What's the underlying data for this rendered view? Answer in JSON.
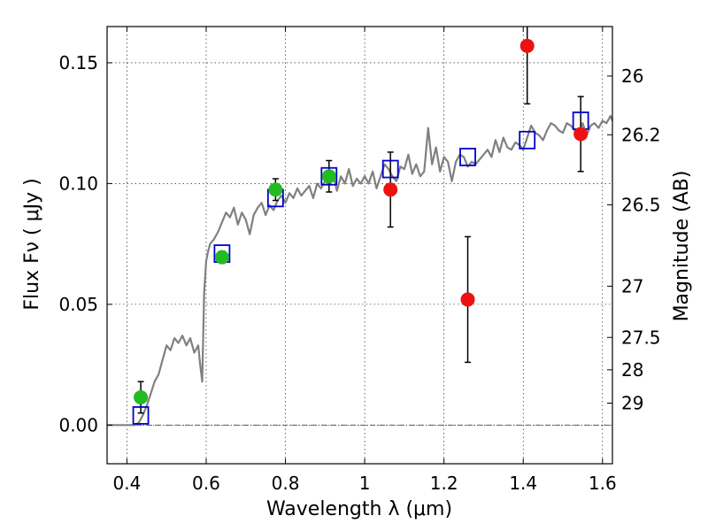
{
  "chart_data": {
    "type": "scatter",
    "xlabel": "Wavelength  λ (μm)",
    "ylabel": "Flux  Fν  ( μJy )",
    "ylabel_right": "Magnitude (AB)",
    "xlim": [
      0.35,
      1.625
    ],
    "ylim": [
      -0.016,
      0.165
    ],
    "grid": true,
    "x_ticks": [
      0.4,
      0.6,
      0.8,
      1.0,
      1.2,
      1.4,
      1.6
    ],
    "x_tick_labels": [
      "0.4",
      "0.6",
      "0.8",
      "1",
      "1.2",
      "1.4",
      "1.6"
    ],
    "y_ticks": [
      0.0,
      0.05,
      0.1,
      0.15
    ],
    "y_tick_labels": [
      "0.00",
      "0.05",
      "0.10",
      "0.15"
    ],
    "mag_ticks": [
      {
        "label": "26",
        "flux": 0.1445
      },
      {
        "label": "26.2",
        "flux": 0.1202
      },
      {
        "label": "26.5",
        "flux": 0.0912
      },
      {
        "label": "27",
        "flux": 0.0575
      },
      {
        "label": "27.5",
        "flux": 0.0363
      },
      {
        "label": "28",
        "flux": 0.0229
      },
      {
        "label": "29",
        "flux": 0.0091
      }
    ],
    "template_spectrum": {
      "color": "#808080",
      "x": [
        0.35,
        0.42,
        0.43,
        0.44,
        0.45,
        0.46,
        0.47,
        0.48,
        0.49,
        0.5,
        0.51,
        0.52,
        0.53,
        0.54,
        0.55,
        0.56,
        0.57,
        0.58,
        0.585,
        0.59,
        0.595,
        0.6,
        0.605,
        0.61,
        0.62,
        0.63,
        0.64,
        0.65,
        0.66,
        0.67,
        0.68,
        0.69,
        0.7,
        0.71,
        0.72,
        0.73,
        0.74,
        0.75,
        0.76,
        0.77,
        0.78,
        0.79,
        0.8,
        0.81,
        0.82,
        0.83,
        0.84,
        0.85,
        0.86,
        0.87,
        0.88,
        0.89,
        0.9,
        0.91,
        0.92,
        0.93,
        0.94,
        0.95,
        0.96,
        0.97,
        0.98,
        0.99,
        1.0,
        1.01,
        1.02,
        1.03,
        1.04,
        1.05,
        1.06,
        1.07,
        1.08,
        1.09,
        1.1,
        1.11,
        1.12,
        1.13,
        1.14,
        1.15,
        1.16,
        1.17,
        1.18,
        1.19,
        1.2,
        1.21,
        1.22,
        1.23,
        1.24,
        1.25,
        1.26,
        1.27,
        1.28,
        1.29,
        1.3,
        1.31,
        1.32,
        1.33,
        1.34,
        1.35,
        1.36,
        1.37,
        1.38,
        1.39,
        1.4,
        1.41,
        1.42,
        1.43,
        1.44,
        1.45,
        1.46,
        1.47,
        1.48,
        1.49,
        1.5,
        1.51,
        1.52,
        1.53,
        1.54,
        1.55,
        1.56,
        1.57,
        1.58,
        1.59,
        1.6,
        1.61,
        1.62,
        1.625
      ],
      "y": [
        0.0,
        0.0,
        0.001,
        0.004,
        0.008,
        0.013,
        0.018,
        0.021,
        0.027,
        0.033,
        0.031,
        0.036,
        0.034,
        0.037,
        0.033,
        0.036,
        0.03,
        0.033,
        0.025,
        0.018,
        0.055,
        0.068,
        0.072,
        0.075,
        0.077,
        0.08,
        0.084,
        0.088,
        0.086,
        0.09,
        0.083,
        0.088,
        0.085,
        0.079,
        0.087,
        0.09,
        0.092,
        0.087,
        0.091,
        0.089,
        0.093,
        0.095,
        0.092,
        0.096,
        0.094,
        0.098,
        0.095,
        0.097,
        0.099,
        0.094,
        0.1,
        0.098,
        0.101,
        0.1,
        0.104,
        0.097,
        0.103,
        0.1,
        0.106,
        0.099,
        0.102,
        0.1,
        0.103,
        0.1,
        0.105,
        0.098,
        0.103,
        0.108,
        0.106,
        0.103,
        0.101,
        0.107,
        0.106,
        0.112,
        0.104,
        0.108,
        0.103,
        0.105,
        0.123,
        0.108,
        0.115,
        0.105,
        0.111,
        0.109,
        0.101,
        0.109,
        0.112,
        0.111,
        0.107,
        0.109,
        0.108,
        0.11,
        0.112,
        0.114,
        0.111,
        0.118,
        0.113,
        0.119,
        0.115,
        0.114,
        0.117,
        0.116,
        0.114,
        0.119,
        0.124,
        0.121,
        0.12,
        0.118,
        0.122,
        0.125,
        0.124,
        0.122,
        0.121,
        0.125,
        0.124,
        0.122,
        0.121,
        0.125,
        0.12,
        0.124,
        0.125,
        0.123,
        0.126,
        0.125,
        0.128,
        0.126
      ]
    },
    "series": [
      {
        "color": "#0000cc",
        "marker": "open-square",
        "x": [
          0.435,
          0.64,
          0.775,
          0.91,
          1.065,
          1.26,
          1.41,
          1.545
        ],
        "y": [
          0.004,
          0.071,
          0.094,
          0.103,
          0.106,
          0.111,
          0.118,
          0.126
        ]
      },
      {
        "color": "#22bb22",
        "marker": "filled-circle",
        "x": [
          0.435,
          0.64,
          0.775,
          0.91
        ],
        "y": [
          0.0115,
          0.0695,
          0.0975,
          0.103
        ],
        "err": [
          0.0065,
          0.0025,
          0.0045,
          0.0065
        ]
      },
      {
        "color": "#ee1111",
        "marker": "filled-circle",
        "x": [
          1.065,
          1.26,
          1.41,
          1.545
        ],
        "y": [
          0.0975,
          0.052,
          0.157,
          0.1205
        ],
        "err": [
          0.0155,
          0.026,
          0.024,
          0.0155
        ]
      }
    ]
  }
}
